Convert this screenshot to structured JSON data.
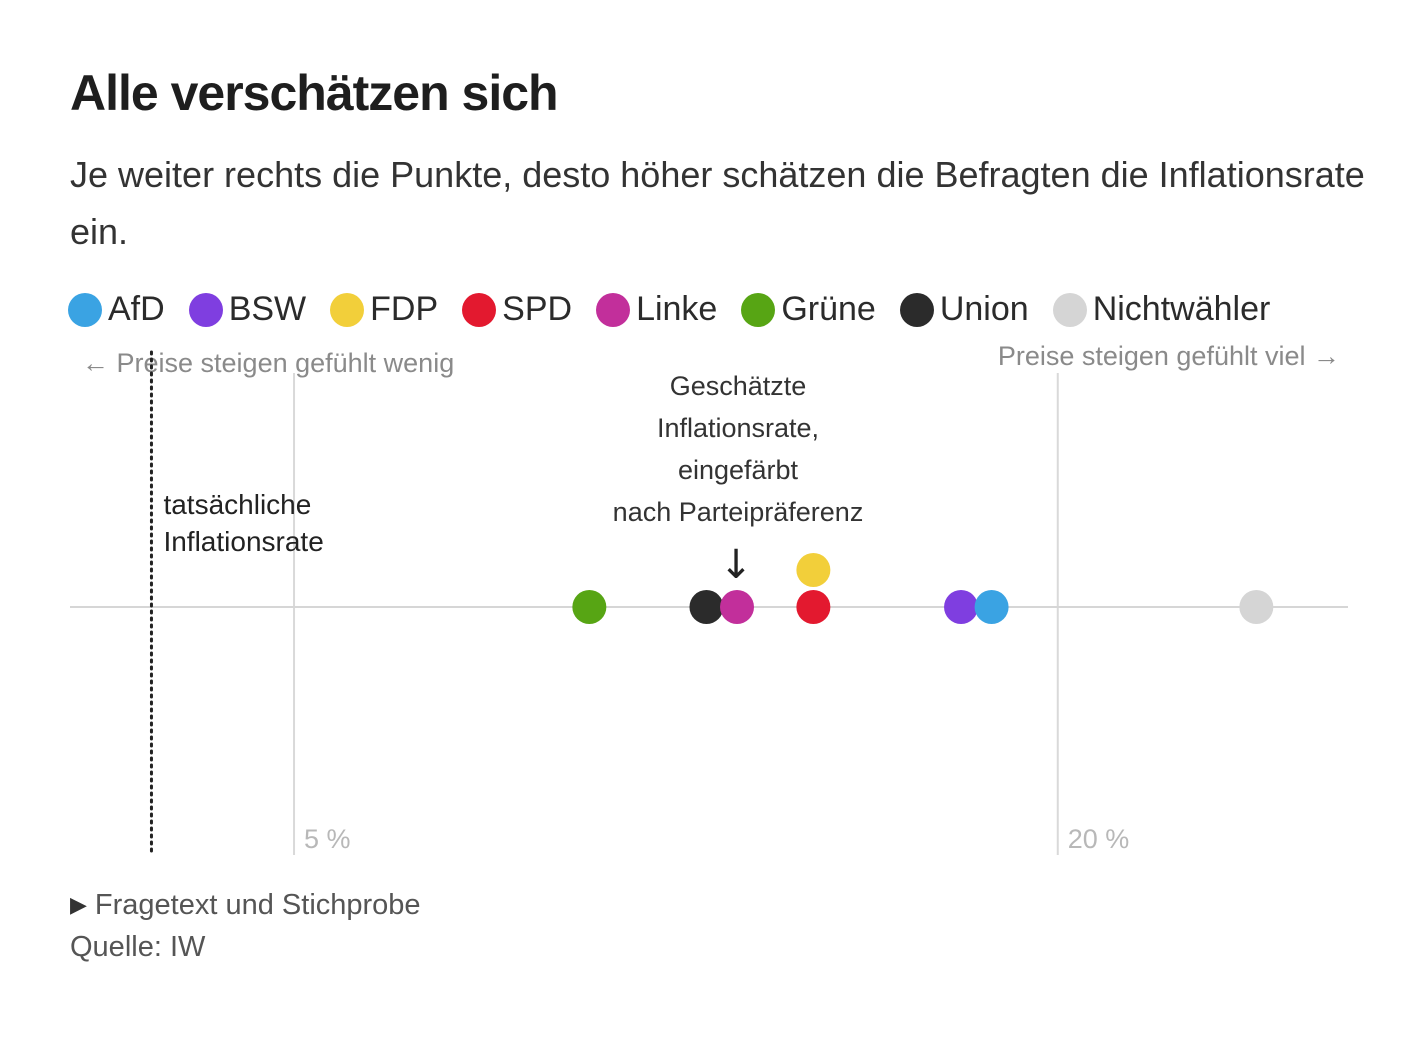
{
  "header": {
    "title": "Alle verschätzen sich",
    "subtitle": "Je weiter rechts die Punkte, desto höher schätzen die Befragten die Inflationsrate ein."
  },
  "legend": [
    {
      "label": "AfD",
      "color": "#3aa3e3"
    },
    {
      "label": "BSW",
      "color": "#7f3ee0"
    },
    {
      "label": "FDP",
      "color": "#f2cf3a"
    },
    {
      "label": "SPD",
      "color": "#e3192f"
    },
    {
      "label": "Linke",
      "color": "#c22f9b"
    },
    {
      "label": "Grüne",
      "color": "#57a514"
    },
    {
      "label": "Union",
      "color": "#2b2b2b"
    },
    {
      "label": "Nichtwähler",
      "color": "#d5d5d5"
    }
  ],
  "chart_data": {
    "type": "scatter",
    "title": "Alle verschätzen sich",
    "xlabel_left": "← Preise steigen gefühlt wenig",
    "xlabel_right": "Preise steigen gefühlt viel →",
    "xlim": [
      0.6,
      25.7
    ],
    "ticks": [
      {
        "value": 5,
        "label": "5 %"
      },
      {
        "value": 20,
        "label": "20 %"
      }
    ],
    "actual_rate": {
      "value": 2.2,
      "label": [
        "tatsächliche",
        "Inflationsrate"
      ]
    },
    "annotation": {
      "lines": [
        "Geschätzte",
        "Inflationsrate,",
        "eingefärbt",
        "nach Parteipräferenz"
      ],
      "arrow": "↓"
    },
    "points": [
      {
        "party": "Grüne",
        "value": 10.8,
        "color": "#57a514",
        "row": 0
      },
      {
        "party": "Union",
        "value": 13.1,
        "color": "#2b2b2b",
        "row": 0
      },
      {
        "party": "Linke",
        "value": 13.7,
        "color": "#c22f9b",
        "row": 0
      },
      {
        "party": "SPD",
        "value": 15.2,
        "color": "#e3192f",
        "row": 0
      },
      {
        "party": "FDP",
        "value": 15.2,
        "color": "#f2cf3a",
        "row": 1
      },
      {
        "party": "BSW",
        "value": 18.1,
        "color": "#7f3ee0",
        "row": 0
      },
      {
        "party": "AfD",
        "value": 18.7,
        "color": "#3aa3e3",
        "row": 0
      },
      {
        "party": "Nichtwähler",
        "value": 23.9,
        "color": "#d5d5d5",
        "row": 0
      }
    ]
  },
  "footer": {
    "toggle_label": "Fragetext und Stichprobe",
    "source": "Quelle: IW"
  }
}
